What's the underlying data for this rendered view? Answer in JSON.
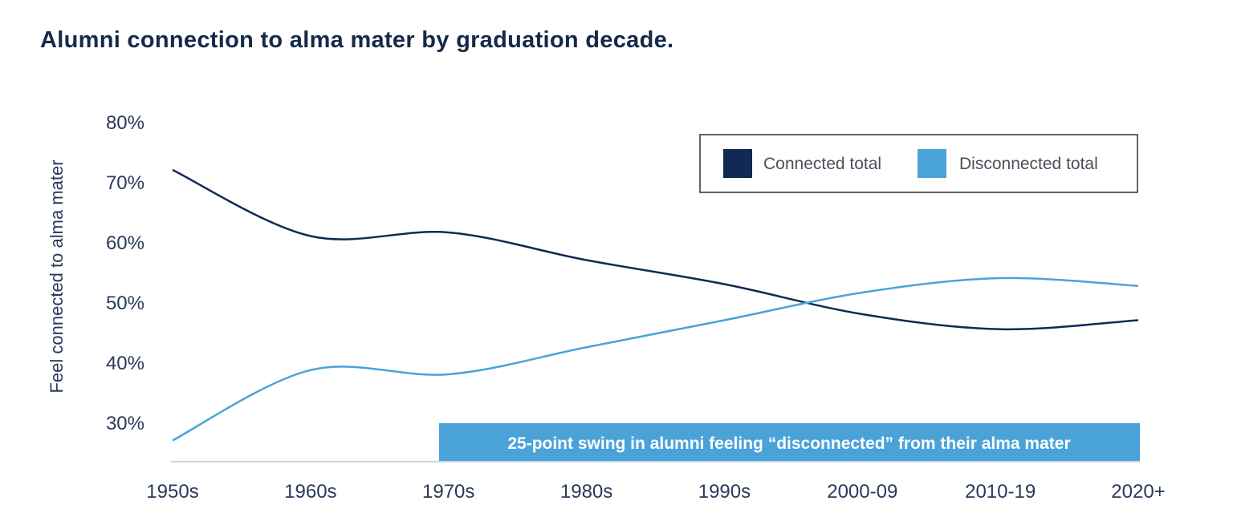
{
  "chart_data": {
    "type": "line",
    "title": "Alumni connection to alma mater by graduation decade.",
    "xlabel": "",
    "ylabel": "Feel connected to alma mater",
    "categories": [
      "1950s",
      "1960s",
      "1970s",
      "1980s",
      "1990s",
      "2000-09",
      "2010-19",
      "2020+"
    ],
    "yticks": [
      "80%",
      "70%",
      "60%",
      "50%",
      "40%",
      "30%"
    ],
    "ytick_values": [
      80,
      70,
      60,
      50,
      40,
      30
    ],
    "ylim": [
      23.6,
      80
    ],
    "grid": false,
    "legend_position": "top-right",
    "series": [
      {
        "name": "Connected total",
        "color": "#102a54",
        "values": [
          72,
          61,
          61.6,
          57,
          53,
          48,
          45.5,
          47
        ]
      },
      {
        "name": "Disconnected total",
        "color": "#4aa3d8",
        "values": [
          27,
          38.7,
          38,
          42.5,
          47,
          51.6,
          54,
          52.7
        ]
      }
    ],
    "annotation": "25-point swing in alumni feeling “disconnected” from their alma mater",
    "annotation_color": "#4aa3d8",
    "axis_color": "#c9d3e3"
  }
}
